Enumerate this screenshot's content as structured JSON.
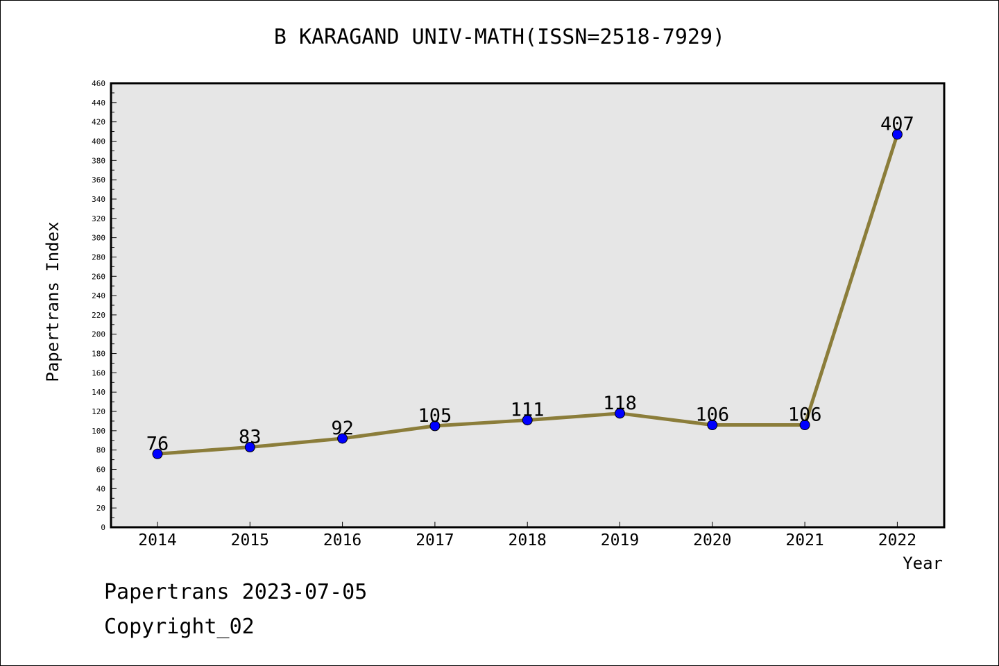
{
  "chart_data": {
    "type": "line",
    "title": "B KARAGAND UNIV-MATH(ISSN=2518-7929)",
    "xlabel": "Year",
    "ylabel": "Papertrans Index",
    "x": [
      "2014",
      "2015",
      "2016",
      "2017",
      "2018",
      "2019",
      "2020",
      "2021",
      "2022"
    ],
    "series": [
      {
        "values": [
          76,
          83,
          92,
          105,
          111,
          118,
          106,
          106,
          407
        ],
        "line_color": "#8b7d3a",
        "marker_color": "#0000ff"
      }
    ],
    "ylim": [
      0,
      460
    ],
    "ytick_step": 20,
    "yticks": [
      "0",
      "20",
      "40",
      "60",
      "80",
      "100",
      "120",
      "140",
      "160",
      "180",
      "200",
      "220",
      "240",
      "260",
      "280",
      "300",
      "320",
      "340",
      "360",
      "380",
      "400",
      "420",
      "440",
      "460"
    ],
    "grid": false,
    "plot_background": "#e6e6e6"
  },
  "footer": {
    "line1": "Papertrans 2023-07-05",
    "line2": "Copyright_02"
  }
}
